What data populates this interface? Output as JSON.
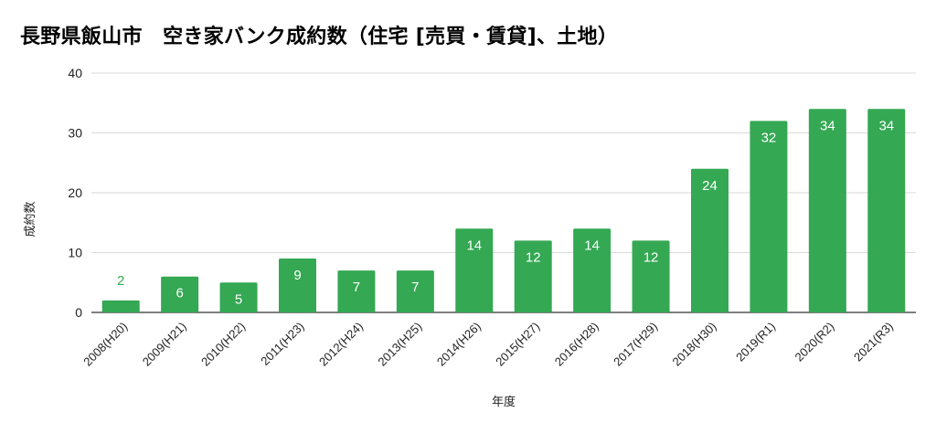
{
  "chart_data": {
    "type": "bar",
    "title": "長野県飯山市　空き家バンク成約数（住宅 [売買・賃貸]、土地）",
    "xlabel": "年度",
    "ylabel": "成約数",
    "ylim": [
      0,
      40
    ],
    "yticks": [
      0,
      10,
      20,
      30,
      40
    ],
    "grid": true,
    "categories": [
      "2008(H20)",
      "2009(H21)",
      "2010(H22)",
      "2011(H23)",
      "2012(H24)",
      "2013(H25)",
      "2014(H26)",
      "2015(H27)",
      "2016(H28)",
      "2017(H29)",
      "2018(H30)",
      "2019(R1)",
      "2020(R2)",
      "2021(R3)"
    ],
    "values": [
      2,
      6,
      5,
      9,
      7,
      7,
      14,
      12,
      14,
      12,
      24,
      32,
      34,
      34
    ],
    "bar_color": "#34a853",
    "label_color_inside": "#ffffff",
    "label_color_outside": "#34a853"
  }
}
